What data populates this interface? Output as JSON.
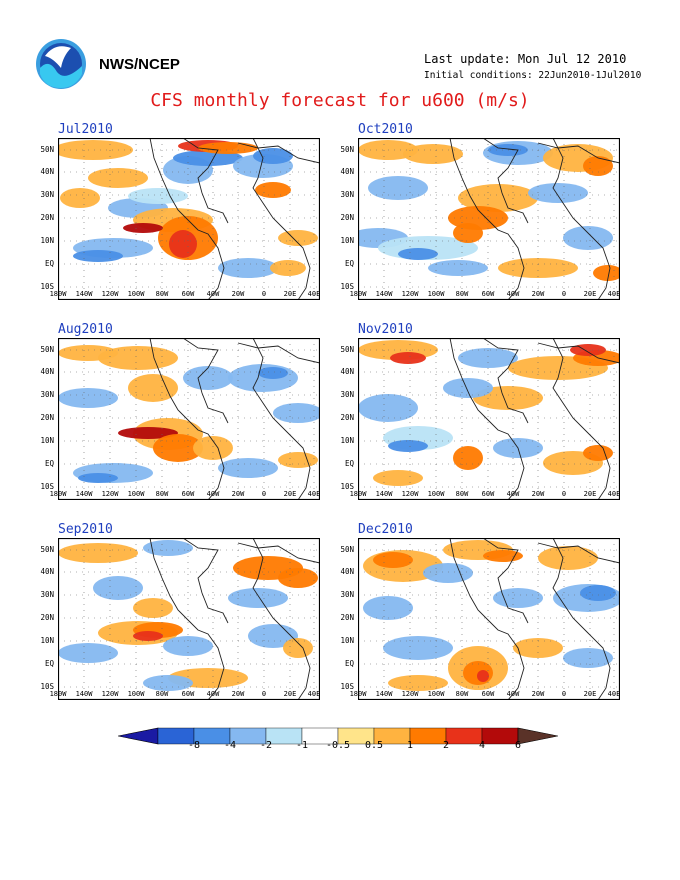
{
  "header": {
    "agency": "NWS/NCEP",
    "last_update": "Last update: Mon Jul 12 2010",
    "initial_conditions": "Initial conditions: 22Jun2010-1Jul2010",
    "title": "CFS monthly forecast for u600 (m/s)"
  },
  "panels": [
    {
      "month": "Jul2010"
    },
    {
      "month": "Oct2010"
    },
    {
      "month": "Aug2010"
    },
    {
      "month": "Nov2010"
    },
    {
      "month": "Sep2010"
    },
    {
      "month": "Dec2010"
    }
  ],
  "axes": {
    "lat_labels": [
      "50N",
      "40N",
      "30N",
      "20N",
      "10N",
      "EQ",
      "10S"
    ],
    "lon_labels": [
      "180W",
      "140W",
      "120W",
      "100W",
      "80W",
      "60W",
      "40W",
      "20W",
      "0",
      "20E",
      "40E"
    ]
  },
  "colorbar": {
    "labels": [
      "-8",
      "-4",
      "-2",
      "-1",
      "-0.5",
      "0.5",
      "1",
      "2",
      "4",
      "6"
    ],
    "colors": [
      "#1a1aa3",
      "#2a64d6",
      "#4a8fe6",
      "#85b8f0",
      "#b9e3f5",
      "#ffffff",
      "#ffe48a",
      "#ffb340",
      "#ff7a00",
      "#e8321a",
      "#b30a0a",
      "#5a3228"
    ]
  }
}
